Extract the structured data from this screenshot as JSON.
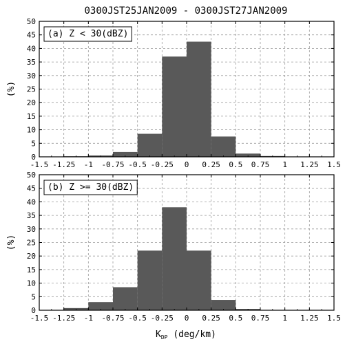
{
  "figure_title": "0300JST25JAN2009 - 0300JST27JAN2009",
  "xlabel_main": "K",
  "xlabel_sub": "DP",
  "xlabel_unit": " (deg/km)",
  "colors": {
    "bar": "#595959",
    "grid": "#9a9a9a",
    "axis": "#000000"
  },
  "chart_data": [
    {
      "type": "bar",
      "panel_label": "(a) Z < 30(dBZ)",
      "xlabel": "",
      "ylabel": "(%)",
      "xlim": [
        -1.5,
        1.5
      ],
      "ylim": [
        0,
        50
      ],
      "bin_width": 0.25,
      "bin_starts": [
        -1.25,
        -1.0,
        -0.75,
        -0.5,
        -0.25,
        0.0,
        0.25,
        0.5,
        0.75,
        1.0
      ],
      "values": [
        0.2,
        0.5,
        1.8,
        8.5,
        37,
        42.5,
        7.5,
        1.2,
        0.3,
        0.1
      ],
      "x_ticks": [
        "-1.5",
        "-1.25",
        "-1",
        "-0.75",
        "-0.5",
        "-0.25",
        "0",
        "0.25",
        "0.5",
        "0.75",
        "1",
        "1.25",
        "1.5"
      ],
      "y_ticks": [
        "0",
        "5",
        "10",
        "15",
        "20",
        "25",
        "30",
        "35",
        "40",
        "45",
        "50"
      ],
      "grid": true
    },
    {
      "type": "bar",
      "panel_label": "(b) Z >= 30(dBZ)",
      "xlabel": "",
      "ylabel": "(%)",
      "xlim": [
        -1.5,
        1.5
      ],
      "ylim": [
        0,
        50
      ],
      "bin_width": 0.25,
      "bin_starts": [
        -1.25,
        -1.0,
        -0.75,
        -0.5,
        -0.25,
        0.0,
        0.25,
        0.5,
        0.75,
        1.0
      ],
      "values": [
        0.8,
        3.0,
        8.5,
        22,
        38,
        22,
        3.8,
        0.5,
        0.1,
        0.1
      ],
      "x_ticks": [
        "-1.5",
        "-1.25",
        "-1",
        "-0.75",
        "-0.5",
        "-0.25",
        "0",
        "0.25",
        "0.5",
        "0.75",
        "1",
        "1.25",
        "1.5"
      ],
      "y_ticks": [
        "0",
        "5",
        "10",
        "15",
        "20",
        "25",
        "30",
        "35",
        "40",
        "45",
        "50"
      ],
      "grid": true
    }
  ]
}
